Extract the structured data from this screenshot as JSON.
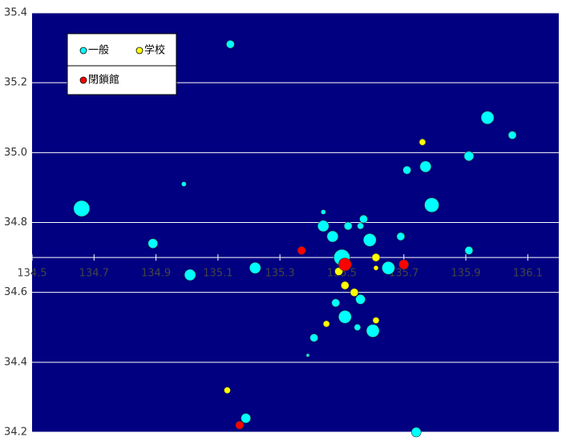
{
  "chart_data": {
    "type": "bubble",
    "xlim": [
      134.5,
      136.2
    ],
    "ylim": [
      34.2,
      35.4
    ],
    "xticks": [
      {
        "value": 134.5,
        "label": "134.5"
      },
      {
        "value": 134.7,
        "label": "134.7"
      },
      {
        "value": 134.9,
        "label": "134.9"
      },
      {
        "value": 135.1,
        "label": "135.1"
      },
      {
        "value": 135.3,
        "label": "135.3"
      },
      {
        "value": 135.5,
        "label": "135.5"
      },
      {
        "value": 135.7,
        "label": "135.7"
      },
      {
        "value": 135.9,
        "label": "135.9"
      },
      {
        "value": 136.1,
        "label": "136.1"
      }
    ],
    "yticks": [
      {
        "value": 34.2,
        "label": "34.2"
      },
      {
        "value": 34.4,
        "label": "34.4"
      },
      {
        "value": 34.6,
        "label": "34.6"
      },
      {
        "value": 34.8,
        "label": "34.8"
      },
      {
        "value": 35.0,
        "label": "35.0"
      },
      {
        "value": 35.2,
        "label": "35.2"
      },
      {
        "value": 35.4,
        "label": "35.4"
      }
    ],
    "x_axis_crossing": 34.7,
    "grid": true,
    "background": "#000080",
    "series": [
      {
        "name": "一般",
        "color": "#00ffff",
        "x": [
          135.14,
          134.66,
          134.89,
          134.99,
          135.01,
          135.22,
          135.44,
          135.44,
          135.47,
          135.52,
          135.57,
          135.56,
          135.59,
          135.5,
          135.65,
          135.69,
          135.71,
          135.77,
          135.79,
          135.91,
          135.97,
          136.05,
          135.91,
          135.48,
          135.56,
          135.51,
          135.55,
          135.6,
          135.41,
          135.39,
          135.19,
          135.74
        ],
        "values": [
          35.31,
          34.84,
          34.74,
          34.91,
          34.65,
          34.67,
          34.83,
          34.79,
          34.76,
          34.79,
          34.81,
          34.79,
          34.75,
          34.7,
          34.67,
          34.76,
          34.95,
          34.96,
          34.85,
          34.99,
          35.1,
          35.05,
          34.72,
          34.57,
          34.58,
          34.53,
          34.5,
          34.49,
          34.47,
          34.42,
          34.24,
          34.2
        ],
        "size": [
          5,
          10,
          6,
          3,
          7,
          7,
          3,
          7,
          7,
          5,
          5,
          4,
          8,
          10,
          8,
          5,
          5,
          7,
          9,
          6,
          8,
          5,
          5,
          5,
          6,
          8,
          4,
          8,
          5,
          2,
          6,
          6
        ]
      },
      {
        "name": "学校",
        "color": "#ffff00",
        "x": [
          135.76,
          135.61,
          135.61,
          135.49,
          135.51,
          135.54,
          135.61,
          135.45,
          135.13
        ],
        "values": [
          35.03,
          34.7,
          34.67,
          34.66,
          34.62,
          34.6,
          34.52,
          34.51,
          34.32
        ],
        "size": [
          4,
          5,
          3,
          5,
          5,
          5,
          4,
          4,
          4
        ]
      },
      {
        "name": "閉鎖館",
        "color": "#ff0000",
        "x": [
          135.37,
          135.51,
          135.7,
          135.17
        ],
        "values": [
          34.72,
          34.68,
          34.68,
          34.22
        ],
        "size": [
          5,
          8,
          6,
          5
        ]
      }
    ]
  }
}
